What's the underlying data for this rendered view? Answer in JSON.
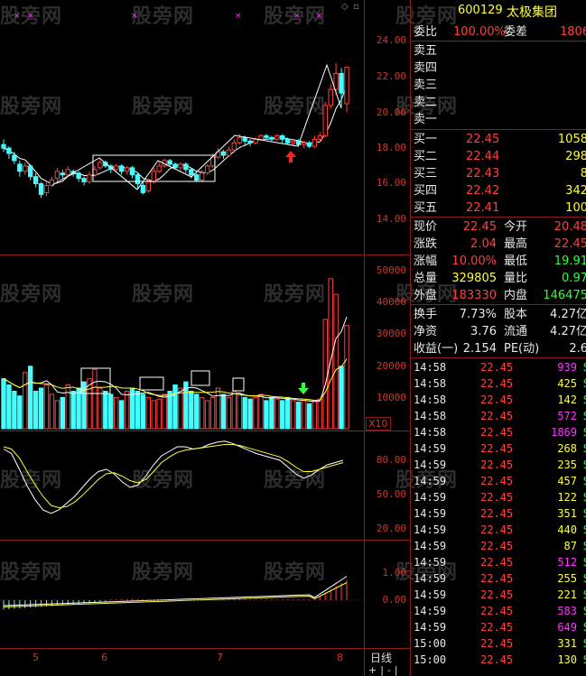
{
  "stock": {
    "code": "600129",
    "name": "太极集团"
  },
  "quote": {
    "ratio_label": "委比",
    "ratio_value": "100.00%",
    "diff_label": "委差",
    "diff_value": "1806",
    "sell": [
      {
        "label": "卖五",
        "price": "",
        "vol": ""
      },
      {
        "label": "卖四",
        "price": "",
        "vol": ""
      },
      {
        "label": "卖三",
        "price": "",
        "vol": ""
      },
      {
        "label": "卖二",
        "price": "",
        "vol": ""
      },
      {
        "label": "卖一",
        "price": "",
        "vol": ""
      }
    ],
    "buy": [
      {
        "label": "买一",
        "price": "22.45",
        "vol": "1058"
      },
      {
        "label": "买二",
        "price": "22.44",
        "vol": "298"
      },
      {
        "label": "买三",
        "price": "22.43",
        "vol": "8"
      },
      {
        "label": "买四",
        "price": "22.42",
        "vol": "342"
      },
      {
        "label": "买五",
        "price": "22.41",
        "vol": "100"
      }
    ],
    "stats": [
      {
        "l1": "现价",
        "v1": "22.45",
        "l2": "今开",
        "v2": "20.48",
        "c1": "red",
        "c2": "red"
      },
      {
        "l1": "涨跌",
        "v1": "2.04",
        "l2": "最高",
        "v2": "22.45",
        "c1": "red",
        "c2": "red"
      },
      {
        "l1": "涨幅",
        "v1": "10.00%",
        "l2": "最低",
        "v2": "19.91",
        "c1": "red",
        "c2": "green"
      },
      {
        "l1": "总量",
        "v1": "329805",
        "l2": "量比",
        "v2": "0.97",
        "c1": "yellow",
        "c2": "green"
      },
      {
        "l1": "外盘",
        "v1": "183330",
        "l2": "内盘",
        "v2": "146475",
        "c1": "red",
        "c2": "green"
      }
    ],
    "finance": [
      {
        "l1": "换手",
        "v1": "7.73%",
        "l2": "股本",
        "v2": "4.27亿"
      },
      {
        "l1": "净资",
        "v1": "3.76",
        "l2": "流通",
        "v2": "4.27亿"
      },
      {
        "l1": "收益(一)",
        "v1": "2.154",
        "l2": "PE(动)",
        "v2": "2.6"
      }
    ]
  },
  "ticks": [
    {
      "t": "14:58",
      "p": "22.45",
      "v": "939",
      "vc": "purple",
      "s": "S"
    },
    {
      "t": "14:58",
      "p": "22.45",
      "v": "425",
      "vc": "yellow",
      "s": "S"
    },
    {
      "t": "14:58",
      "p": "22.45",
      "v": "142",
      "vc": "yellow",
      "s": "S"
    },
    {
      "t": "14:58",
      "p": "22.45",
      "v": "572",
      "vc": "purple",
      "s": "S"
    },
    {
      "t": "14:58",
      "p": "22.45",
      "v": "1869",
      "vc": "purple",
      "s": "S"
    },
    {
      "t": "14:59",
      "p": "22.45",
      "v": "268",
      "vc": "yellow",
      "s": "S"
    },
    {
      "t": "14:59",
      "p": "22.45",
      "v": "235",
      "vc": "yellow",
      "s": "S"
    },
    {
      "t": "14:59",
      "p": "22.45",
      "v": "457",
      "vc": "yellow",
      "s": "S"
    },
    {
      "t": "14:59",
      "p": "22.45",
      "v": "122",
      "vc": "yellow",
      "s": "S"
    },
    {
      "t": "14:59",
      "p": "22.45",
      "v": "351",
      "vc": "yellow",
      "s": "S"
    },
    {
      "t": "14:59",
      "p": "22.45",
      "v": "440",
      "vc": "yellow",
      "s": "S"
    },
    {
      "t": "14:59",
      "p": "22.45",
      "v": "87",
      "vc": "yellow",
      "s": "S"
    },
    {
      "t": "14:59",
      "p": "22.45",
      "v": "512",
      "vc": "purple",
      "s": "S"
    },
    {
      "t": "14:59",
      "p": "22.45",
      "v": "255",
      "vc": "yellow",
      "s": "S"
    },
    {
      "t": "14:59",
      "p": "22.45",
      "v": "221",
      "vc": "yellow",
      "s": "S"
    },
    {
      "t": "14:59",
      "p": "22.45",
      "v": "583",
      "vc": "purple",
      "s": "S"
    },
    {
      "t": "14:59",
      "p": "22.45",
      "v": "649",
      "vc": "purple",
      "s": "S"
    },
    {
      "t": "15:00",
      "p": "22.45",
      "v": "331",
      "vc": "yellow",
      "s": "S"
    },
    {
      "t": "15:00",
      "p": "22.45",
      "v": "130",
      "vc": "yellow",
      "s": "S"
    }
  ],
  "price_axis": [
    "24.00",
    "22.00",
    "20.00",
    "18.00",
    "16.00",
    "14.00"
  ],
  "volume_axis": [
    "50000",
    "40000",
    "30000",
    "20000",
    "10000"
  ],
  "volume_unit": "X10",
  "kdj_axis": [
    "80.00",
    "50.00",
    "20.00"
  ],
  "macd_axis": [
    "1.00",
    "0.00"
  ],
  "date_axis": [
    "5",
    "6",
    "7",
    "8"
  ],
  "period_label": "日线",
  "zoom_controls": [
    "+",
    "|",
    "-",
    "|"
  ],
  "watermark": "股旁网",
  "colors": {
    "up": "#ff4040",
    "down": "#4ff",
    "ma": "#fff",
    "ma2": "#ffff33",
    "border": "#8b1a1a"
  }
}
